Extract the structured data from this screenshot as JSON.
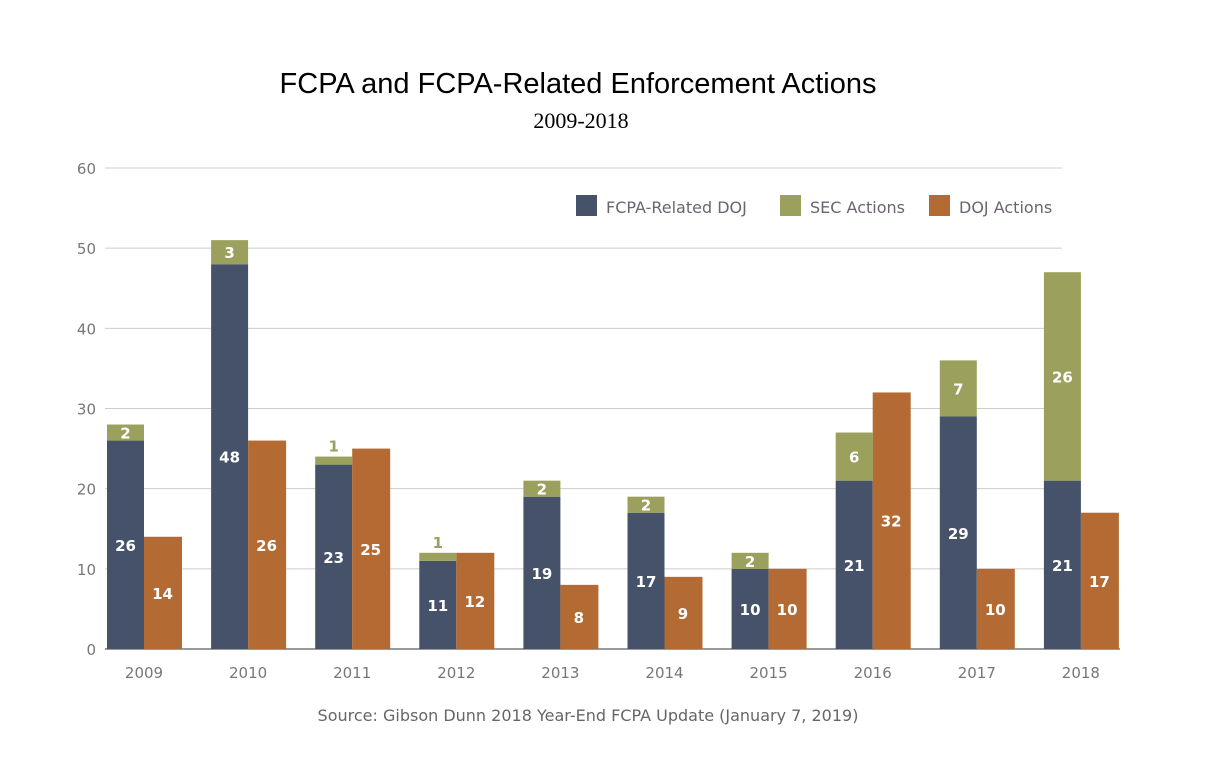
{
  "chart_data": {
    "type": "bar",
    "title": "FCPA and FCPA-Related Enforcement Actions",
    "subtitle": "2009-2018",
    "source": "Source: Gibson Dunn 2018 Year-End FCPA Update (January 7, 2019)",
    "categories": [
      "2009",
      "2010",
      "2011",
      "2012",
      "2013",
      "2014",
      "2015",
      "2016",
      "2017",
      "2018"
    ],
    "series": [
      {
        "name": "FCPA-Related DOJ",
        "color": "#46526a",
        "stack": "A",
        "values": [
          26,
          48,
          23,
          11,
          19,
          17,
          10,
          21,
          29,
          21
        ]
      },
      {
        "name": "SEC Actions",
        "color": "#9ba05c",
        "stack": "A",
        "values": [
          2,
          3,
          1,
          1,
          2,
          2,
          2,
          6,
          7,
          26
        ]
      },
      {
        "name": "DOJ Actions",
        "color": "#b36b33",
        "stack": "B",
        "values": [
          14,
          26,
          25,
          12,
          8,
          9,
          10,
          32,
          10,
          17
        ]
      }
    ],
    "ylim": [
      0,
      60
    ],
    "yticks": [
      0,
      10,
      20,
      30,
      40,
      50,
      60
    ],
    "grid": true,
    "legend_position": "top-right"
  }
}
